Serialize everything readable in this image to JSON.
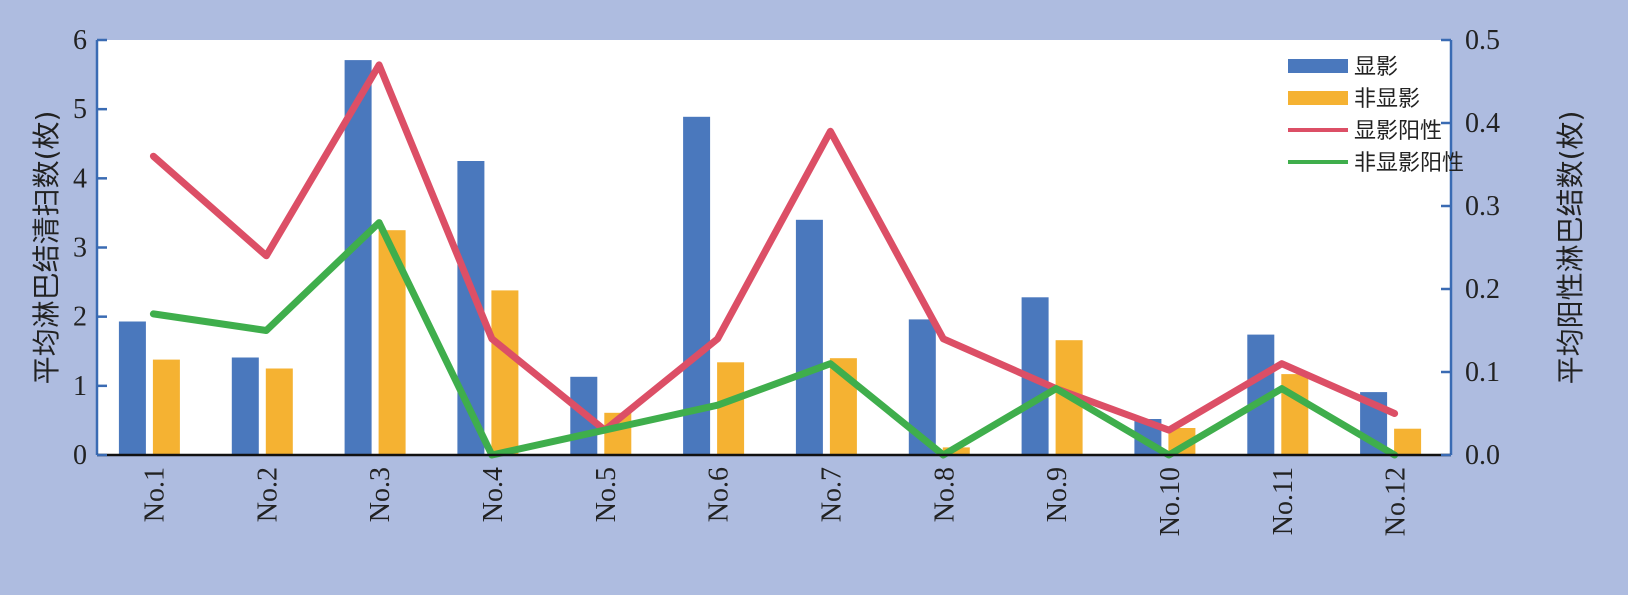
{
  "chart_data": {
    "type": "bar",
    "categories": [
      "No.1",
      "No.2",
      "No.3",
      "No.4",
      "No.5",
      "No.6",
      "No.7",
      "No.8",
      "No.9",
      "No.10",
      "No.11",
      "No.12"
    ],
    "series": [
      {
        "name": "显影",
        "type": "bar",
        "axis": "left",
        "color": "#4a78bd",
        "values": [
          1.93,
          1.41,
          5.71,
          4.25,
          1.13,
          4.89,
          3.4,
          1.96,
          2.28,
          0.52,
          1.74,
          0.91
        ]
      },
      {
        "name": "非显影",
        "type": "bar",
        "axis": "left",
        "color": "#f5b232",
        "values": [
          1.38,
          1.25,
          3.25,
          2.38,
          0.61,
          1.34,
          1.4,
          0.11,
          1.66,
          0.39,
          1.17,
          0.38
        ]
      },
      {
        "name": "显影阳性",
        "type": "line",
        "axis": "right",
        "color": "#dc4f66",
        "values": [
          0.36,
          0.24,
          0.47,
          0.14,
          0.03,
          0.14,
          0.39,
          0.14,
          0.08,
          0.03,
          0.11,
          0.05
        ]
      },
      {
        "name": "非显影阳性",
        "type": "line",
        "axis": "right",
        "color": "#3fae4c",
        "values": [
          0.17,
          0.15,
          0.28,
          0.0,
          0.03,
          0.06,
          0.11,
          0.0,
          0.08,
          0.0,
          0.08,
          0.0
        ]
      }
    ],
    "ylabel": "平均淋巴结清扫数(枚)",
    "ylabel_right": "平均阳性淋巴结数(枚)",
    "ylim": [
      0,
      6
    ],
    "ylim_right": [
      0,
      0.5
    ],
    "yticks": [
      "0",
      "1",
      "2",
      "3",
      "4",
      "5",
      "6"
    ],
    "yticks_right": [
      "0.0",
      "0.1",
      "0.2",
      "0.3",
      "0.4",
      "0.5"
    ],
    "grid": false,
    "legend_position": "top-right"
  }
}
